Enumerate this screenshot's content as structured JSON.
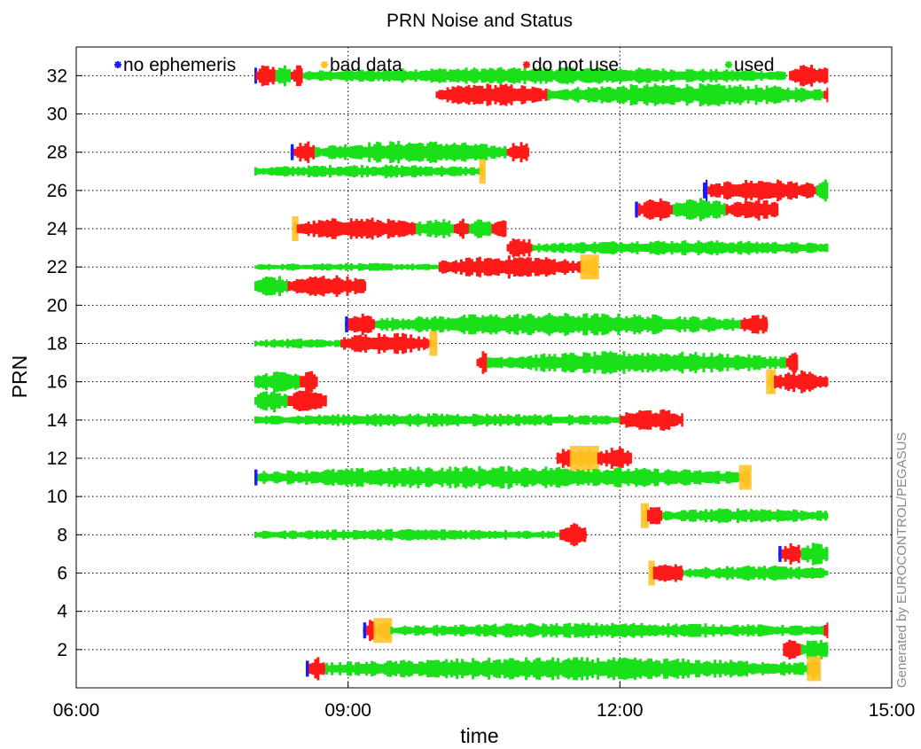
{
  "chart_data": {
    "type": "scatter",
    "title": "PRN Noise and Status",
    "xlabel": "time",
    "ylabel": "PRN",
    "xlim": [
      "06:00",
      "15:00"
    ],
    "ylim": [
      0,
      33.5
    ],
    "xticks": [
      "06:00",
      "09:00",
      "12:00",
      "15:00"
    ],
    "yticks": [
      2,
      4,
      6,
      8,
      10,
      12,
      14,
      16,
      18,
      20,
      22,
      24,
      26,
      28,
      30,
      32
    ],
    "grid": true,
    "legend_placement": "top",
    "watermark": "Generated by EUROCONTROL/PEGASUS",
    "status_colors": {
      "no ephemeris": "#1a1aff",
      "bad data": "#ffc020",
      "do not use": "#ff1a1a",
      "used": "#1ae01a"
    },
    "series": [
      {
        "name": "no ephemeris"
      },
      {
        "name": "bad data"
      },
      {
        "name": "do not use"
      },
      {
        "name": "used"
      }
    ],
    "prns": [
      {
        "prn": 32,
        "segments": [
          {
            "status": "no ephemeris",
            "start": "07:58",
            "end": "07:59"
          },
          {
            "status": "do not use",
            "start": "07:59",
            "end": "08:12"
          },
          {
            "status": "used",
            "start": "08:12",
            "end": "08:22"
          },
          {
            "status": "do not use",
            "start": "08:22",
            "end": "08:30"
          },
          {
            "status": "used",
            "start": "08:30",
            "end": "13:50",
            "noise": 0.7
          },
          {
            "status": "do not use",
            "start": "13:52",
            "end": "14:18"
          }
        ]
      },
      {
        "prn": 31,
        "segments": [
          {
            "status": "do not use",
            "start": "09:58",
            "end": "11:12"
          },
          {
            "status": "used",
            "start": "11:12",
            "end": "14:15"
          },
          {
            "status": "do not use",
            "start": "14:15",
            "end": "14:18"
          }
        ]
      },
      {
        "prn": 28,
        "segments": [
          {
            "status": "no ephemeris",
            "start": "08:22",
            "end": "08:24"
          },
          {
            "status": "do not use",
            "start": "08:24",
            "end": "08:38"
          },
          {
            "status": "used",
            "start": "08:38",
            "end": "10:45"
          },
          {
            "status": "do not use",
            "start": "10:45",
            "end": "11:00"
          }
        ]
      },
      {
        "prn": 27,
        "segments": [
          {
            "status": "used",
            "start": "07:58",
            "end": "10:28",
            "noise": 0.5
          },
          {
            "status": "bad data",
            "start": "10:28",
            "end": "10:30"
          }
        ]
      },
      {
        "prn": 26,
        "segments": [
          {
            "status": "no ephemeris",
            "start": "12:55",
            "end": "12:58"
          },
          {
            "status": "do not use",
            "start": "12:58",
            "end": "14:10"
          },
          {
            "status": "used",
            "start": "14:10",
            "end": "14:18"
          }
        ]
      },
      {
        "prn": 25,
        "segments": [
          {
            "status": "no ephemeris",
            "start": "12:10",
            "end": "12:12"
          },
          {
            "status": "do not use",
            "start": "12:12",
            "end": "12:35"
          },
          {
            "status": "used",
            "start": "12:35",
            "end": "13:10"
          },
          {
            "status": "do not use",
            "start": "13:10",
            "end": "13:45"
          }
        ]
      },
      {
        "prn": 24,
        "segments": [
          {
            "status": "bad data",
            "start": "08:24",
            "end": "08:26"
          },
          {
            "status": "do not use",
            "start": "08:26",
            "end": "09:45"
          },
          {
            "status": "used",
            "start": "09:45",
            "end": "10:10"
          },
          {
            "status": "do not use",
            "start": "10:10",
            "end": "10:20"
          },
          {
            "status": "used",
            "start": "10:20",
            "end": "10:35"
          },
          {
            "status": "do not use",
            "start": "10:35",
            "end": "10:45"
          }
        ]
      },
      {
        "prn": 23,
        "segments": [
          {
            "status": "do not use",
            "start": "10:45",
            "end": "11:02"
          },
          {
            "status": "used",
            "start": "11:02",
            "end": "14:18",
            "noise": 0.6
          }
        ]
      },
      {
        "prn": 22,
        "segments": [
          {
            "status": "used",
            "start": "07:58",
            "end": "10:00",
            "noise": 0.2
          },
          {
            "status": "do not use",
            "start": "10:00",
            "end": "11:35"
          },
          {
            "status": "bad data",
            "start": "11:35",
            "end": "11:45"
          }
        ]
      },
      {
        "prn": 21,
        "segments": [
          {
            "status": "used",
            "start": "07:58",
            "end": "08:20"
          },
          {
            "status": "do not use",
            "start": "08:20",
            "end": "09:12"
          }
        ]
      },
      {
        "prn": 19,
        "segments": [
          {
            "status": "no ephemeris",
            "start": "08:58",
            "end": "09:00"
          },
          {
            "status": "do not use",
            "start": "09:00",
            "end": "09:18"
          },
          {
            "status": "used",
            "start": "09:18",
            "end": "13:20"
          },
          {
            "status": "do not use",
            "start": "13:20",
            "end": "13:38"
          }
        ]
      },
      {
        "prn": 18,
        "segments": [
          {
            "status": "used",
            "start": "07:58",
            "end": "08:55",
            "noise": 0.3
          },
          {
            "status": "do not use",
            "start": "08:55",
            "end": "09:55"
          },
          {
            "status": "bad data",
            "start": "09:55",
            "end": "09:58"
          }
        ]
      },
      {
        "prn": 17,
        "segments": [
          {
            "status": "do not use",
            "start": "10:25",
            "end": "10:32"
          },
          {
            "status": "used",
            "start": "10:32",
            "end": "13:50"
          },
          {
            "status": "do not use",
            "start": "13:50",
            "end": "13:58"
          }
        ]
      },
      {
        "prn": 16,
        "segments": [
          {
            "status": "used",
            "start": "07:58",
            "end": "08:28"
          },
          {
            "status": "do not use",
            "start": "08:28",
            "end": "08:40"
          },
          {
            "status": "bad data",
            "start": "13:38",
            "end": "13:42"
          },
          {
            "status": "do not use",
            "start": "13:42",
            "end": "14:18"
          }
        ]
      },
      {
        "prn": 15,
        "segments": [
          {
            "status": "used",
            "start": "07:58",
            "end": "08:20"
          },
          {
            "status": "do not use",
            "start": "08:20",
            "end": "08:46"
          }
        ]
      },
      {
        "prn": 14,
        "segments": [
          {
            "status": "used",
            "start": "07:58",
            "end": "12:00",
            "noise": 0.5
          },
          {
            "status": "do not use",
            "start": "12:00",
            "end": "12:42"
          }
        ]
      },
      {
        "prn": 12,
        "segments": [
          {
            "status": "do not use",
            "start": "11:18",
            "end": "11:28"
          },
          {
            "status": "bad data",
            "start": "11:28",
            "end": "11:45"
          },
          {
            "status": "do not use",
            "start": "11:45",
            "end": "12:08"
          }
        ]
      },
      {
        "prn": 11,
        "segments": [
          {
            "status": "no ephemeris",
            "start": "07:58",
            "end": "08:00"
          },
          {
            "status": "used",
            "start": "08:00",
            "end": "13:20"
          },
          {
            "status": "bad data",
            "start": "13:20",
            "end": "13:26"
          }
        ]
      },
      {
        "prn": 9,
        "segments": [
          {
            "status": "bad data",
            "start": "12:15",
            "end": "12:18"
          },
          {
            "status": "do not use",
            "start": "12:18",
            "end": "12:28"
          },
          {
            "status": "used",
            "start": "12:28",
            "end": "14:18",
            "noise": 0.6
          }
        ]
      },
      {
        "prn": 8,
        "segments": [
          {
            "status": "used",
            "start": "07:58",
            "end": "11:20",
            "noise": 0.4
          },
          {
            "status": "do not use",
            "start": "11:20",
            "end": "11:38"
          }
        ]
      },
      {
        "prn": 7,
        "segments": [
          {
            "status": "no ephemeris",
            "start": "13:45",
            "end": "13:47"
          },
          {
            "status": "do not use",
            "start": "13:47",
            "end": "14:00"
          },
          {
            "status": "used",
            "start": "14:00",
            "end": "14:18"
          }
        ]
      },
      {
        "prn": 6,
        "segments": [
          {
            "status": "bad data",
            "start": "12:20",
            "end": "12:22"
          },
          {
            "status": "do not use",
            "start": "12:22",
            "end": "12:42"
          },
          {
            "status": "used",
            "start": "12:42",
            "end": "14:18",
            "noise": 0.6
          }
        ]
      },
      {
        "prn": 3,
        "segments": [
          {
            "status": "no ephemeris",
            "start": "09:10",
            "end": "09:12"
          },
          {
            "status": "do not use",
            "start": "09:12",
            "end": "09:18"
          },
          {
            "status": "bad data",
            "start": "09:18",
            "end": "09:28"
          },
          {
            "status": "used",
            "start": "09:28",
            "end": "14:15",
            "noise": 0.6
          },
          {
            "status": "do not use",
            "start": "14:15",
            "end": "14:18"
          }
        ]
      },
      {
        "prn": 2,
        "segments": [
          {
            "status": "do not use",
            "start": "13:48",
            "end": "14:00"
          },
          {
            "status": "used",
            "start": "14:00",
            "end": "14:18"
          }
        ]
      },
      {
        "prn": 1,
        "segments": [
          {
            "status": "no ephemeris",
            "start": "08:32",
            "end": "08:34"
          },
          {
            "status": "do not use",
            "start": "08:34",
            "end": "08:45"
          },
          {
            "status": "used",
            "start": "08:45",
            "end": "14:05"
          },
          {
            "status": "bad data",
            "start": "14:05",
            "end": "14:12"
          }
        ]
      }
    ]
  }
}
